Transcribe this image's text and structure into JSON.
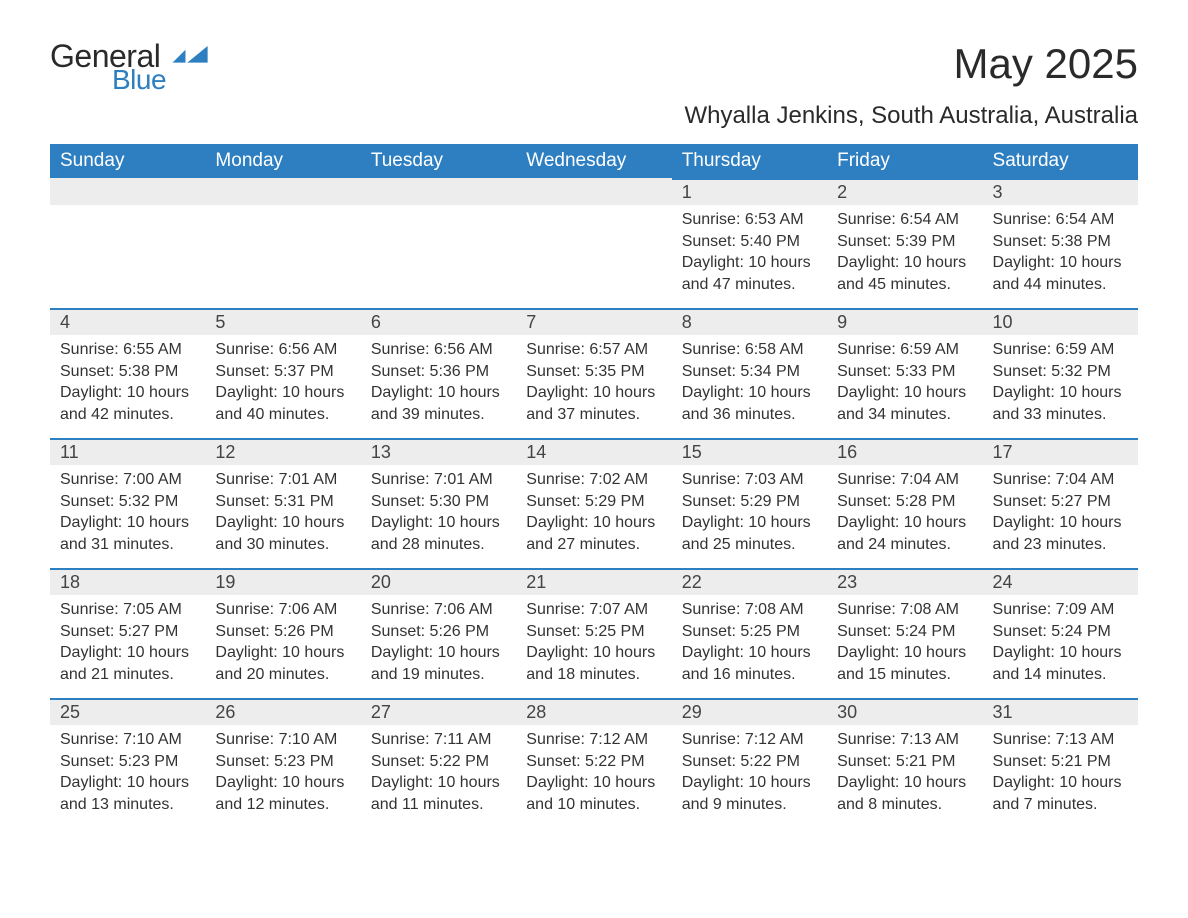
{
  "brand": {
    "part1": "General",
    "part2": "Blue",
    "flag_color": "#2d7fc1"
  },
  "title": "May 2025",
  "subtitle": "Whyalla Jenkins, South Australia, Australia",
  "colors": {
    "header_bg": "#2d7fc1",
    "header_text": "#ffffff",
    "daynum_bg": "#ededed",
    "text": "#333333",
    "rule": "#2d7fc1",
    "page_bg": "#ffffff"
  },
  "typography": {
    "title_fontsize": 42,
    "subtitle_fontsize": 24,
    "header_fontsize": 19,
    "daynum_fontsize": 18,
    "body_fontsize": 16
  },
  "layout": {
    "columns": 7,
    "rows": 5,
    "first_day_column_index": 4
  },
  "weekdays": [
    "Sunday",
    "Monday",
    "Tuesday",
    "Wednesday",
    "Thursday",
    "Friday",
    "Saturday"
  ],
  "days": [
    {
      "n": 1,
      "sunrise": "6:53 AM",
      "sunset": "5:40 PM",
      "daylight": "10 hours and 47 minutes."
    },
    {
      "n": 2,
      "sunrise": "6:54 AM",
      "sunset": "5:39 PM",
      "daylight": "10 hours and 45 minutes."
    },
    {
      "n": 3,
      "sunrise": "6:54 AM",
      "sunset": "5:38 PM",
      "daylight": "10 hours and 44 minutes."
    },
    {
      "n": 4,
      "sunrise": "6:55 AM",
      "sunset": "5:38 PM",
      "daylight": "10 hours and 42 minutes."
    },
    {
      "n": 5,
      "sunrise": "6:56 AM",
      "sunset": "5:37 PM",
      "daylight": "10 hours and 40 minutes."
    },
    {
      "n": 6,
      "sunrise": "6:56 AM",
      "sunset": "5:36 PM",
      "daylight": "10 hours and 39 minutes."
    },
    {
      "n": 7,
      "sunrise": "6:57 AM",
      "sunset": "5:35 PM",
      "daylight": "10 hours and 37 minutes."
    },
    {
      "n": 8,
      "sunrise": "6:58 AM",
      "sunset": "5:34 PM",
      "daylight": "10 hours and 36 minutes."
    },
    {
      "n": 9,
      "sunrise": "6:59 AM",
      "sunset": "5:33 PM",
      "daylight": "10 hours and 34 minutes."
    },
    {
      "n": 10,
      "sunrise": "6:59 AM",
      "sunset": "5:32 PM",
      "daylight": "10 hours and 33 minutes."
    },
    {
      "n": 11,
      "sunrise": "7:00 AM",
      "sunset": "5:32 PM",
      "daylight": "10 hours and 31 minutes."
    },
    {
      "n": 12,
      "sunrise": "7:01 AM",
      "sunset": "5:31 PM",
      "daylight": "10 hours and 30 minutes."
    },
    {
      "n": 13,
      "sunrise": "7:01 AM",
      "sunset": "5:30 PM",
      "daylight": "10 hours and 28 minutes."
    },
    {
      "n": 14,
      "sunrise": "7:02 AM",
      "sunset": "5:29 PM",
      "daylight": "10 hours and 27 minutes."
    },
    {
      "n": 15,
      "sunrise": "7:03 AM",
      "sunset": "5:29 PM",
      "daylight": "10 hours and 25 minutes."
    },
    {
      "n": 16,
      "sunrise": "7:04 AM",
      "sunset": "5:28 PM",
      "daylight": "10 hours and 24 minutes."
    },
    {
      "n": 17,
      "sunrise": "7:04 AM",
      "sunset": "5:27 PM",
      "daylight": "10 hours and 23 minutes."
    },
    {
      "n": 18,
      "sunrise": "7:05 AM",
      "sunset": "5:27 PM",
      "daylight": "10 hours and 21 minutes."
    },
    {
      "n": 19,
      "sunrise": "7:06 AM",
      "sunset": "5:26 PM",
      "daylight": "10 hours and 20 minutes."
    },
    {
      "n": 20,
      "sunrise": "7:06 AM",
      "sunset": "5:26 PM",
      "daylight": "10 hours and 19 minutes."
    },
    {
      "n": 21,
      "sunrise": "7:07 AM",
      "sunset": "5:25 PM",
      "daylight": "10 hours and 18 minutes."
    },
    {
      "n": 22,
      "sunrise": "7:08 AM",
      "sunset": "5:25 PM",
      "daylight": "10 hours and 16 minutes."
    },
    {
      "n": 23,
      "sunrise": "7:08 AM",
      "sunset": "5:24 PM",
      "daylight": "10 hours and 15 minutes."
    },
    {
      "n": 24,
      "sunrise": "7:09 AM",
      "sunset": "5:24 PM",
      "daylight": "10 hours and 14 minutes."
    },
    {
      "n": 25,
      "sunrise": "7:10 AM",
      "sunset": "5:23 PM",
      "daylight": "10 hours and 13 minutes."
    },
    {
      "n": 26,
      "sunrise": "7:10 AM",
      "sunset": "5:23 PM",
      "daylight": "10 hours and 12 minutes."
    },
    {
      "n": 27,
      "sunrise": "7:11 AM",
      "sunset": "5:22 PM",
      "daylight": "10 hours and 11 minutes."
    },
    {
      "n": 28,
      "sunrise": "7:12 AM",
      "sunset": "5:22 PM",
      "daylight": "10 hours and 10 minutes."
    },
    {
      "n": 29,
      "sunrise": "7:12 AM",
      "sunset": "5:22 PM",
      "daylight": "10 hours and 9 minutes."
    },
    {
      "n": 30,
      "sunrise": "7:13 AM",
      "sunset": "5:21 PM",
      "daylight": "10 hours and 8 minutes."
    },
    {
      "n": 31,
      "sunrise": "7:13 AM",
      "sunset": "5:21 PM",
      "daylight": "10 hours and 7 minutes."
    }
  ],
  "labels": {
    "sunrise": "Sunrise:",
    "sunset": "Sunset:",
    "daylight": "Daylight:"
  }
}
